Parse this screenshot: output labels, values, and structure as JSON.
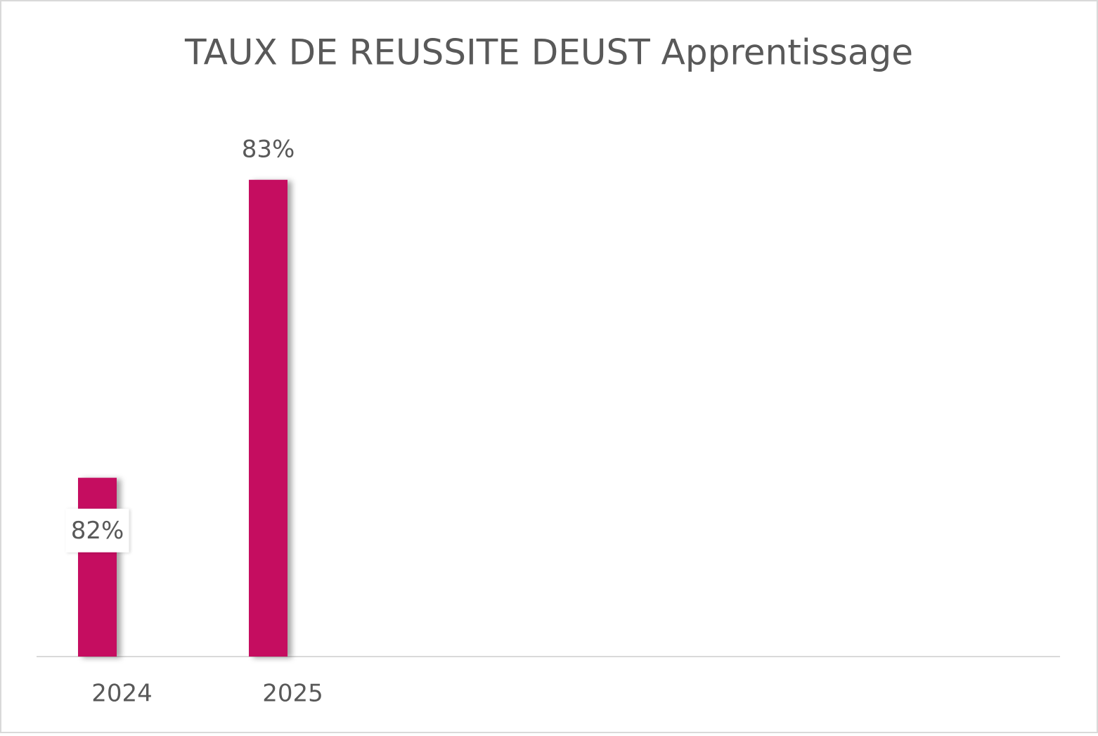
{
  "chart_data": {
    "type": "bar",
    "title": "TAUX DE REUSSITE DEUST Apprentissage",
    "categories": [
      "2024",
      "2025"
    ],
    "values": [
      82,
      83
    ],
    "value_labels": [
      "82%",
      "83%"
    ],
    "color": "#c50a60",
    "ylim": [
      81.4,
      83.2
    ]
  }
}
